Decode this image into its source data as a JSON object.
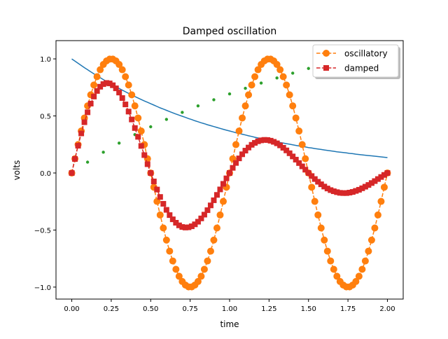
{
  "chart_data": {
    "type": "line",
    "title": "Damped oscillation",
    "xlabel": "time",
    "ylabel": "volts",
    "xlim": [
      -0.1,
      2.1
    ],
    "ylim": [
      -1.105,
      1.16
    ],
    "grid": false,
    "legend_position": "top-right",
    "xticks": [
      "0.00",
      "0.25",
      "0.50",
      "0.75",
      "1.00",
      "1.25",
      "1.50",
      "1.75",
      "2.00"
    ],
    "xtick_values": [
      0,
      0.25,
      0.5,
      0.75,
      1,
      1.25,
      1.5,
      1.75,
      2
    ],
    "yticks": [
      "−1.0",
      "−0.5",
      "0.0",
      "0.5",
      "1.0"
    ],
    "ytick_values": [
      -1,
      -0.5,
      0,
      0.5,
      1
    ],
    "x": [
      0,
      0.02,
      0.04,
      0.06,
      0.08,
      0.1,
      0.12,
      0.14,
      0.16,
      0.18,
      0.2,
      0.22,
      0.24,
      0.26,
      0.28,
      0.3,
      0.32,
      0.34,
      0.36,
      0.38,
      0.4,
      0.42,
      0.44,
      0.46,
      0.48,
      0.5,
      0.52,
      0.54,
      0.56,
      0.58,
      0.6,
      0.62,
      0.64,
      0.66,
      0.68,
      0.7,
      0.72,
      0.74,
      0.76,
      0.78,
      0.8,
      0.82,
      0.84,
      0.86,
      0.88,
      0.9,
      0.92,
      0.94,
      0.96,
      0.98,
      1,
      1.02,
      1.04,
      1.06,
      1.08,
      1.1,
      1.12,
      1.14,
      1.16,
      1.18,
      1.2,
      1.22,
      1.24,
      1.26,
      1.28,
      1.3,
      1.32,
      1.34,
      1.36,
      1.38,
      1.4,
      1.42,
      1.44,
      1.46,
      1.48,
      1.5,
      1.52,
      1.54,
      1.56,
      1.58,
      1.6,
      1.62,
      1.64,
      1.66,
      1.68,
      1.7,
      1.72,
      1.74,
      1.76,
      1.78,
      1.8,
      1.82,
      1.84,
      1.86,
      1.88,
      1.9,
      1.92,
      1.94,
      1.96,
      1.98,
      2
    ],
    "series": [
      {
        "style": "solid-line",
        "color": "#1f77b4",
        "values": [
          1,
          0.98,
          0.961,
          0.942,
          0.923,
          0.905,
          0.887,
          0.869,
          0.852,
          0.835,
          0.819,
          0.803,
          0.787,
          0.771,
          0.756,
          0.741,
          0.726,
          0.712,
          0.698,
          0.684,
          0.67,
          0.657,
          0.644,
          0.631,
          0.619,
          0.607,
          0.595,
          0.583,
          0.571,
          0.56,
          0.549,
          0.538,
          0.527,
          0.517,
          0.507,
          0.497,
          0.487,
          0.477,
          0.468,
          0.458,
          0.449,
          0.44,
          0.432,
          0.423,
          0.415,
          0.407,
          0.399,
          0.391,
          0.383,
          0.375,
          0.368,
          0.361,
          0.353,
          0.347,
          0.34,
          0.333,
          0.326,
          0.32,
          0.313,
          0.307,
          0.301,
          0.295,
          0.29,
          0.284,
          0.278,
          0.273,
          0.267,
          0.262,
          0.257,
          0.252,
          0.247,
          0.242,
          0.237,
          0.232,
          0.228,
          0.223,
          0.219,
          0.214,
          0.21,
          0.206,
          0.202,
          0.198,
          0.194,
          0.19,
          0.186,
          0.183,
          0.179,
          0.176,
          0.172,
          0.169,
          0.165,
          0.162,
          0.159,
          0.156,
          0.153,
          0.15,
          0.147,
          0.144,
          0.141,
          0.138,
          0.135
        ]
      },
      {
        "style": "dots",
        "color": "#2ca02c",
        "x": [
          0,
          0.1,
          0.2,
          0.3,
          0.4,
          0.5,
          0.6,
          0.7,
          0.8,
          0.9,
          1.0,
          1.1,
          1.2,
          1.3,
          1.4,
          1.5,
          1.6,
          1.7,
          1.8,
          1.9
        ],
        "values": [
          0,
          0.095,
          0.182,
          0.262,
          0.336,
          0.405,
          0.47,
          0.531,
          0.588,
          0.642,
          0.693,
          0.742,
          0.788,
          0.833,
          0.875,
          0.916,
          0.956,
          0.993,
          1.03,
          1.065
        ]
      },
      {
        "name": "oscillatory",
        "style": "dashed-circles",
        "color": "#ff7f0e",
        "values": [
          0,
          0.125,
          0.249,
          0.368,
          0.482,
          0.588,
          0.685,
          0.771,
          0.844,
          0.905,
          0.951,
          0.982,
          0.998,
          0.998,
          0.982,
          0.951,
          0.905,
          0.844,
          0.771,
          0.685,
          0.588,
          0.482,
          0.368,
          0.249,
          0.125,
          0,
          -0.125,
          -0.249,
          -0.368,
          -0.482,
          -0.588,
          -0.685,
          -0.771,
          -0.844,
          -0.905,
          -0.951,
          -0.982,
          -0.998,
          -0.998,
          -0.982,
          -0.951,
          -0.905,
          -0.844,
          -0.771,
          -0.685,
          -0.588,
          -0.482,
          -0.368,
          -0.249,
          -0.125,
          0,
          0.125,
          0.249,
          0.368,
          0.482,
          0.588,
          0.685,
          0.771,
          0.844,
          0.905,
          0.951,
          0.982,
          0.998,
          0.998,
          0.982,
          0.951,
          0.905,
          0.844,
          0.771,
          0.685,
          0.588,
          0.482,
          0.368,
          0.249,
          0.125,
          0,
          -0.125,
          -0.249,
          -0.368,
          -0.482,
          -0.588,
          -0.685,
          -0.771,
          -0.844,
          -0.905,
          -0.951,
          -0.982,
          -0.998,
          -0.998,
          -0.982,
          -0.951,
          -0.905,
          -0.844,
          -0.771,
          -0.685,
          -0.588,
          -0.482,
          -0.368,
          -0.249,
          -0.125,
          0
        ]
      },
      {
        "name": "damped",
        "style": "dashed-squares",
        "color": "#d62728",
        "values": [
          0,
          0.123,
          0.239,
          0.347,
          0.445,
          0.532,
          0.608,
          0.67,
          0.719,
          0.756,
          0.779,
          0.789,
          0.785,
          0.769,
          0.742,
          0.705,
          0.657,
          0.601,
          0.538,
          0.469,
          0.394,
          0.317,
          0.237,
          0.157,
          0.077,
          0,
          -0.074,
          -0.145,
          -0.21,
          -0.27,
          -0.323,
          -0.369,
          -0.406,
          -0.436,
          -0.459,
          -0.473,
          -0.478,
          -0.476,
          -0.467,
          -0.45,
          -0.427,
          -0.398,
          -0.365,
          -0.326,
          -0.284,
          -0.239,
          -0.192,
          -0.144,
          -0.095,
          -0.047,
          0,
          0.045,
          0.088,
          0.128,
          0.164,
          0.196,
          0.223,
          0.247,
          0.264,
          0.278,
          0.286,
          0.29,
          0.289,
          0.283,
          0.273,
          0.26,
          0.242,
          0.221,
          0.198,
          0.173,
          0.145,
          0.117,
          0.087,
          0.058,
          0.029,
          0,
          -0.027,
          -0.053,
          -0.077,
          -0.099,
          -0.119,
          -0.136,
          -0.15,
          -0.16,
          -0.168,
          -0.174,
          -0.176,
          -0.176,
          -0.172,
          -0.166,
          -0.157,
          -0.147,
          -0.134,
          -0.12,
          -0.105,
          -0.088,
          -0.071,
          -0.053,
          -0.035,
          -0.017,
          0
        ]
      }
    ]
  }
}
